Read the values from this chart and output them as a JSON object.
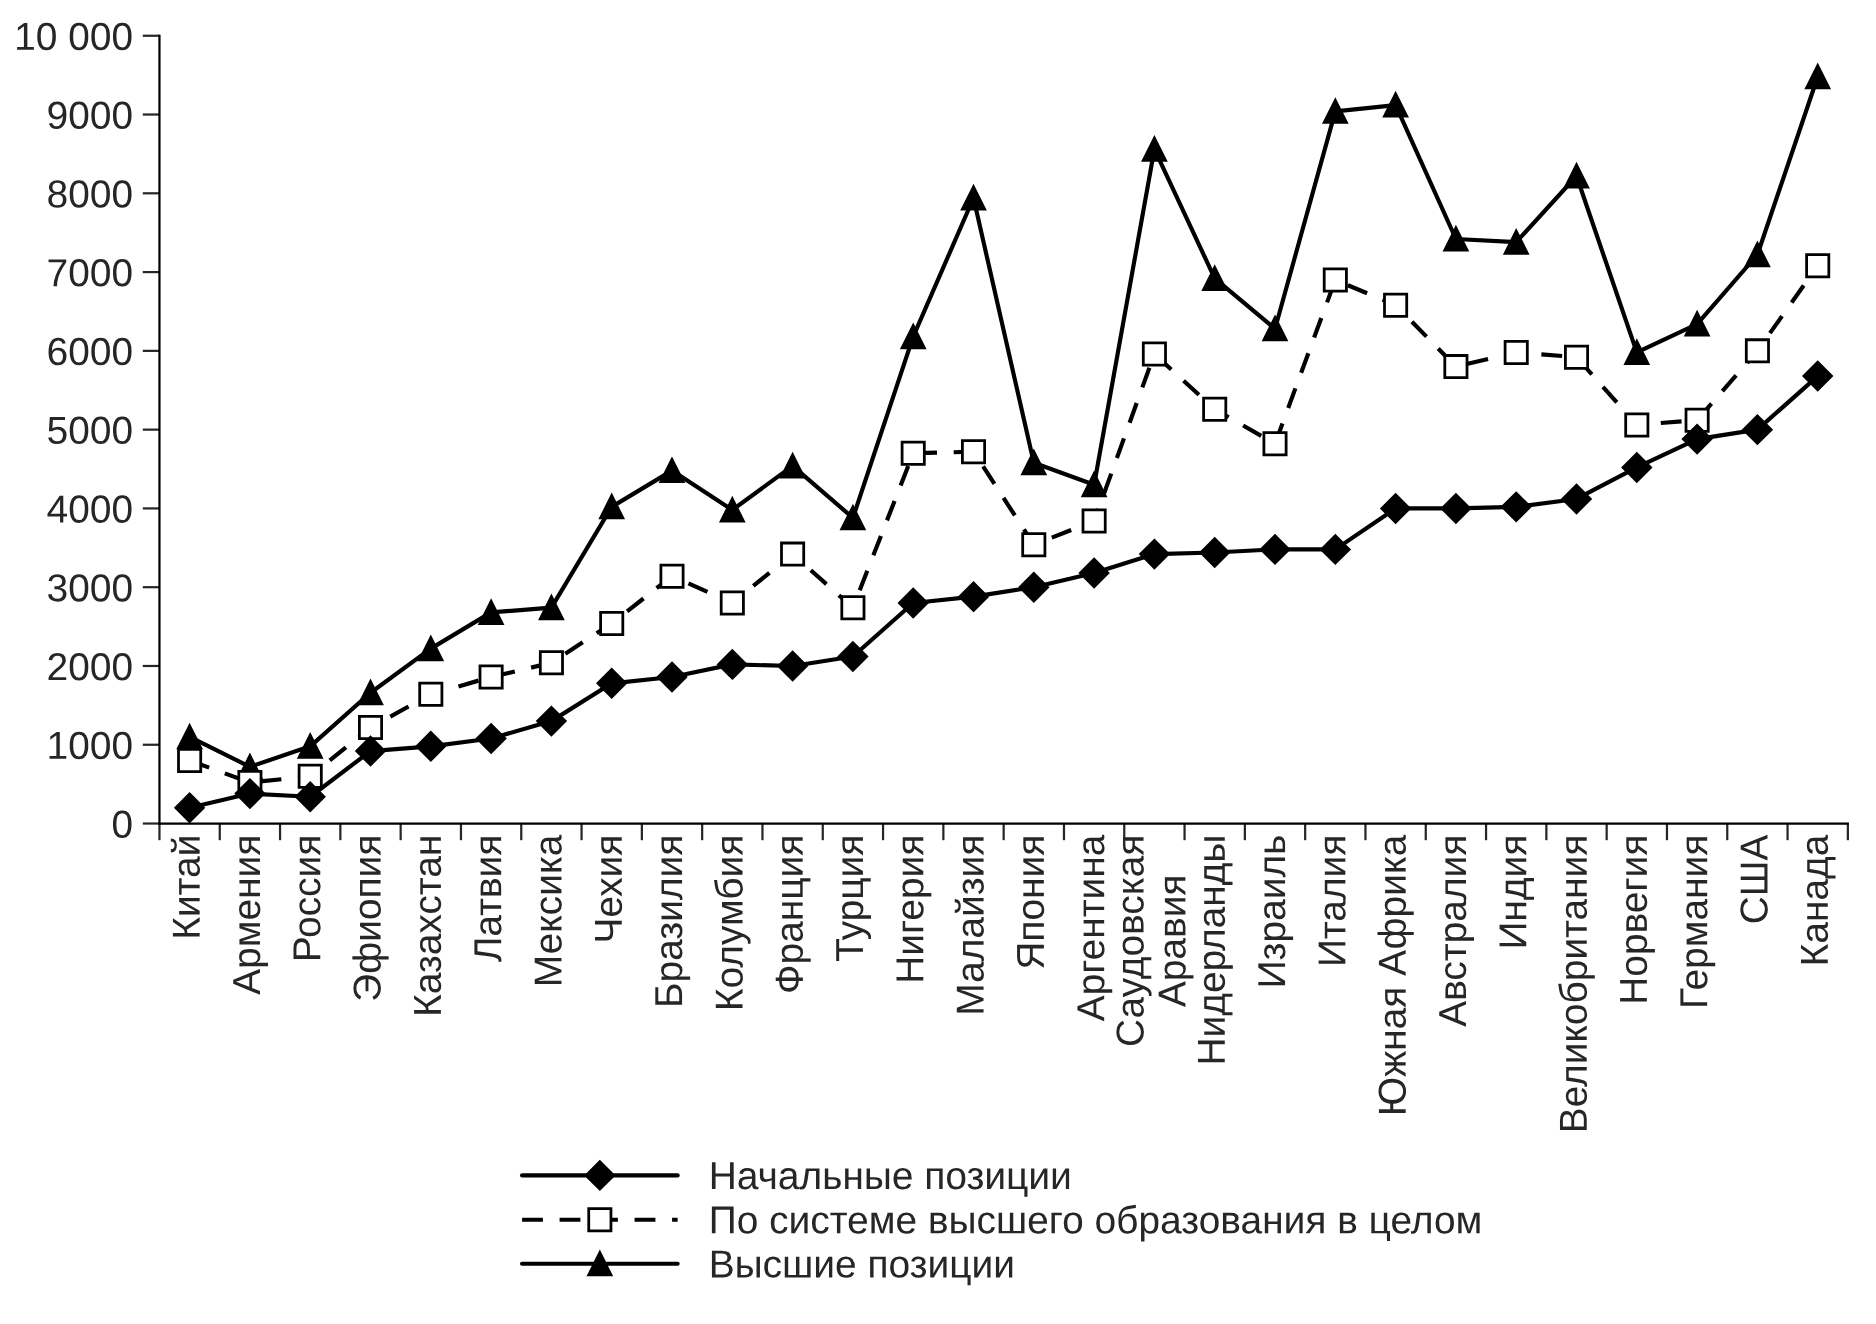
{
  "chart_data": {
    "type": "line",
    "categories": [
      "Китай",
      "Армения",
      "Россия",
      "Эфиопия",
      "Казахстан",
      "Латвия",
      "Мексика",
      "Чехия",
      "Бразилия",
      "Колумбия",
      "Франция",
      "Турция",
      "Нигерия",
      "Малайзия",
      "Япония",
      "Аргентина",
      "Саудовская\nАравия",
      "Нидерланды",
      "Израиль",
      "Италия",
      "Южная Африка",
      "Австралия",
      "Индия",
      "Великобритания",
      "Норвегия",
      "Германия",
      "США",
      "Канада"
    ],
    "series": [
      {
        "name": "Начальные позиции",
        "color": "#000000",
        "marker": "diamond",
        "line_style": "solid",
        "values": [
          200,
          380,
          340,
          920,
          980,
          1080,
          1300,
          1780,
          1860,
          2020,
          2000,
          2120,
          2800,
          2880,
          3000,
          3180,
          3420,
          3440,
          3480,
          3480,
          4000,
          4000,
          4020,
          4120,
          4520,
          4880,
          5000,
          5680
        ]
      },
      {
        "name": "По системе высшего образования в целом",
        "color": "#000000",
        "marker": "square",
        "line_style": "dashed",
        "values": [
          800,
          520,
          600,
          1220,
          1640,
          1860,
          2040,
          2540,
          3140,
          2800,
          3420,
          2740,
          4700,
          4720,
          3540,
          3840,
          5960,
          5260,
          4820,
          6900,
          6580,
          5800,
          5980,
          5920,
          5060,
          5120,
          6000,
          7080
        ]
      },
      {
        "name": "Высшие позиции",
        "color": "#000000",
        "marker": "triangle",
        "line_style": "solid",
        "values": [
          1100,
          720,
          980,
          1660,
          2220,
          2680,
          2740,
          4020,
          4480,
          3980,
          4540,
          3880,
          6180,
          7940,
          4580,
          4300,
          8560,
          6920,
          6280,
          9040,
          9120,
          7420,
          7380,
          8220,
          5980,
          6340,
          7220,
          9480
        ]
      }
    ],
    "ylim": [
      0,
      10000
    ],
    "yticks": [
      0,
      1000,
      2000,
      3000,
      4000,
      5000,
      6000,
      7000,
      8000,
      9000,
      {
        "value": 10000,
        "label": "10 000"
      }
    ],
    "grid": false,
    "legend": "bottom"
  }
}
